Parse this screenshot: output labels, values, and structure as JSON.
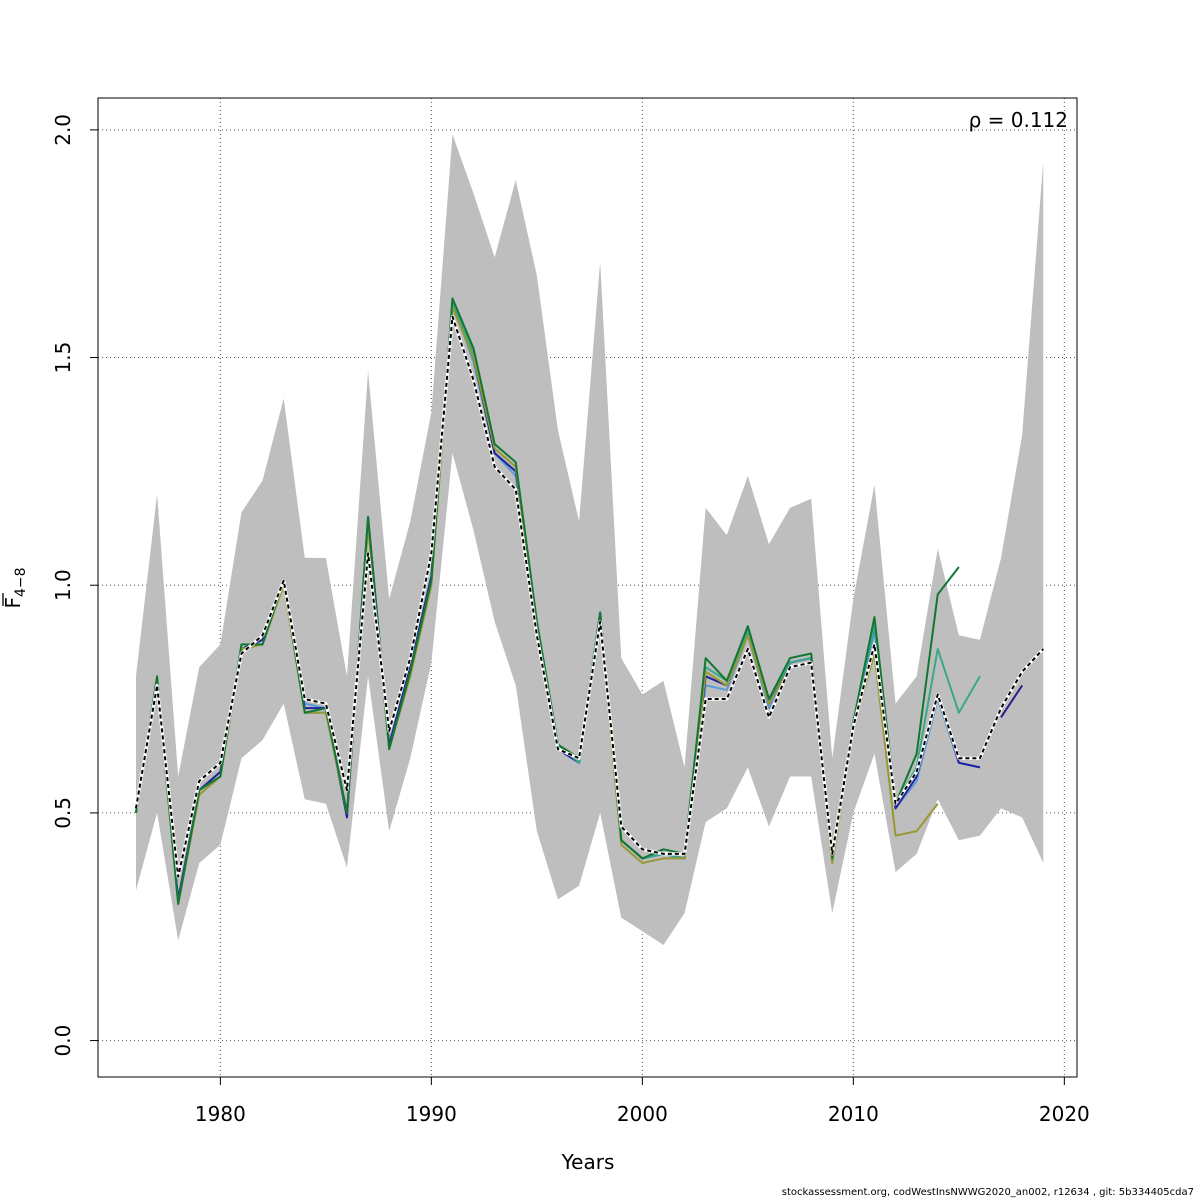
{
  "chart_data": {
    "type": "line",
    "xlabel": "Years",
    "ylabel_main": "F",
    "ylabel_sub": "4−8",
    "annotation": "ρ = 0.112",
    "xlim": [
      1974.2,
      2020.6
    ],
    "ylim": [
      -0.08,
      2.07
    ],
    "x_ticks": [
      1980,
      1990,
      2000,
      2010,
      2020
    ],
    "y_ticks": [
      0.0,
      0.5,
      1.0,
      1.5,
      2.0
    ],
    "y_tick_labels": [
      "0.0",
      "0.5",
      "1.0",
      "1.5",
      "2.0"
    ],
    "grid": true,
    "band_color": "#bebebe",
    "confidence_band": {
      "x": [
        1976,
        1977,
        1978,
        1979,
        1980,
        1981,
        1982,
        1983,
        1984,
        1985,
        1986,
        1987,
        1988,
        1989,
        1990,
        1991,
        1992,
        1993,
        1994,
        1995,
        1996,
        1997,
        1998,
        1999,
        2000,
        2001,
        2002,
        2003,
        2004,
        2005,
        2006,
        2007,
        2008,
        2009,
        2010,
        2011,
        2012,
        2013,
        2014,
        2015,
        2016,
        2017,
        2018,
        2019
      ],
      "upper": [
        0.8,
        1.2,
        0.58,
        0.82,
        0.87,
        1.16,
        1.23,
        1.41,
        1.06,
        1.06,
        0.8,
        1.47,
        0.97,
        1.14,
        1.38,
        1.99,
        1.86,
        1.72,
        1.89,
        1.68,
        1.34,
        1.14,
        1.71,
        0.84,
        0.76,
        0.79,
        0.6,
        1.17,
        1.11,
        1.24,
        1.09,
        1.17,
        1.19,
        0.62,
        0.97,
        1.22,
        0.74,
        0.8,
        1.08,
        0.89,
        0.88,
        1.06,
        1.33,
        1.93
      ],
      "lower": [
        0.33,
        0.5,
        0.22,
        0.39,
        0.43,
        0.62,
        0.66,
        0.74,
        0.53,
        0.52,
        0.38,
        0.8,
        0.46,
        0.62,
        0.83,
        1.29,
        1.12,
        0.92,
        0.78,
        0.46,
        0.31,
        0.34,
        0.5,
        0.27,
        0.24,
        0.21,
        0.28,
        0.48,
        0.51,
        0.6,
        0.47,
        0.58,
        0.58,
        0.28,
        0.5,
        0.63,
        0.37,
        0.41,
        0.53,
        0.44,
        0.45,
        0.51,
        0.49,
        0.39
      ]
    },
    "series": [
      {
        "color": "#5b9bd5",
        "dashed": false,
        "x": [
          1976,
          1977,
          1978,
          1979,
          1980,
          1981,
          1982,
          1983,
          1984,
          1985,
          1986,
          1987,
          1988,
          1989,
          1990,
          1991,
          1992,
          1993,
          1994,
          1995,
          1996,
          1997,
          1998,
          1999,
          2000,
          2001,
          2002,
          2003,
          2004,
          2005,
          2006,
          2007,
          2008,
          2009,
          2010,
          2011,
          2012,
          2013,
          2014,
          2015,
          2016
        ],
        "y": [
          0.5,
          0.79,
          0.31,
          0.55,
          0.59,
          0.86,
          0.88,
          1.01,
          0.74,
          0.73,
          0.5,
          1.14,
          0.65,
          0.81,
          1.02,
          1.62,
          1.49,
          1.29,
          1.24,
          0.92,
          0.64,
          0.61,
          0.93,
          0.44,
          0.4,
          0.41,
          0.4,
          0.78,
          0.77,
          0.89,
          0.73,
          0.83,
          0.84,
          0.4,
          0.69,
          0.9,
          0.51,
          0.57,
          0.75,
          0.61,
          0.6
        ]
      },
      {
        "color": "#1f1fa0",
        "dashed": false,
        "x": [
          1976,
          1977,
          1978,
          1979,
          1980,
          1981,
          1982,
          1983,
          1984,
          1985,
          1986,
          1987,
          1988,
          1989,
          1990,
          1991,
          1992,
          1993,
          1994,
          1995,
          1996,
          1997,
          1998,
          1999,
          2000,
          2001,
          2002,
          2003,
          2004,
          2005,
          2006,
          2007,
          2008,
          2009,
          2010,
          2011,
          2012,
          2013,
          2014,
          2015,
          2016
        ],
        "y": [
          0.5,
          0.79,
          0.31,
          0.55,
          0.59,
          0.86,
          0.88,
          1.01,
          0.73,
          0.73,
          0.49,
          1.15,
          0.65,
          0.82,
          1.02,
          1.62,
          1.5,
          1.29,
          1.25,
          0.91,
          0.64,
          0.61,
          0.94,
          0.44,
          0.4,
          0.41,
          0.4,
          0.8,
          0.78,
          0.9,
          0.74,
          0.83,
          0.84,
          0.4,
          0.7,
          0.91,
          0.51,
          0.58,
          0.76,
          0.61,
          0.6
        ]
      },
      {
        "color": "#2e1a8a",
        "dashed": false,
        "x": [
          2017,
          2018
        ],
        "y": [
          0.71,
          0.78
        ]
      },
      {
        "color": "#3aa88a",
        "dashed": false,
        "x": [
          1976,
          1977,
          1978,
          1979,
          1980,
          1981,
          1982,
          1983,
          1984,
          1985,
          1986,
          1987,
          1988,
          1989,
          1990,
          1991,
          1992,
          1993,
          1994,
          1995,
          1996,
          1997,
          1998,
          1999,
          2000,
          2001,
          2002,
          2003,
          2004,
          2005,
          2006,
          2007,
          2008,
          2009,
          2010,
          2011,
          2012,
          2013,
          2014,
          2015,
          2016
        ],
        "y": [
          0.5,
          0.79,
          0.3,
          0.55,
          0.58,
          0.86,
          0.87,
          1.01,
          0.72,
          0.72,
          0.5,
          1.14,
          0.64,
          0.81,
          1.01,
          1.62,
          1.51,
          1.3,
          1.26,
          0.92,
          0.65,
          0.61,
          0.93,
          0.44,
          0.4,
          0.41,
          0.4,
          0.82,
          0.79,
          0.9,
          0.75,
          0.83,
          0.84,
          0.4,
          0.7,
          0.91,
          0.52,
          0.6,
          0.86,
          0.72,
          0.8
        ]
      },
      {
        "color": "#999933",
        "dashed": false,
        "x": [
          1976,
          1977,
          1978,
          1979,
          1980,
          1981,
          1982,
          1983,
          1984,
          1985,
          1986,
          1987,
          1988,
          1989,
          1990,
          1991,
          1992,
          1993,
          1994,
          1995,
          1996,
          1997,
          1998,
          1999,
          2000,
          2001,
          2002,
          2003,
          2004,
          2005,
          2006,
          2007,
          2008,
          2009,
          2010,
          2011,
          2012,
          2013,
          2014
        ],
        "y": [
          0.5,
          0.79,
          0.3,
          0.54,
          0.58,
          0.86,
          0.87,
          1.0,
          0.72,
          0.72,
          0.5,
          1.13,
          0.64,
          0.8,
          1.0,
          1.61,
          1.5,
          1.3,
          1.26,
          0.91,
          0.65,
          0.62,
          0.92,
          0.43,
          0.39,
          0.4,
          0.4,
          0.81,
          0.78,
          0.89,
          0.74,
          0.82,
          0.83,
          0.39,
          0.69,
          0.85,
          0.45,
          0.46,
          0.52
        ]
      },
      {
        "color": "#117733",
        "dashed": false,
        "x": [
          1976,
          1977,
          1978,
          1979,
          1980,
          1981,
          1982,
          1983,
          1984,
          1985,
          1986,
          1987,
          1988,
          1989,
          1990,
          1991,
          1992,
          1993,
          1994,
          1995,
          1996,
          1997,
          1998,
          1999,
          2000,
          2001,
          2002,
          2003,
          2004,
          2005,
          2006,
          2007,
          2008,
          2009,
          2010,
          2011,
          2012,
          2013,
          2014,
          2015
        ],
        "y": [
          0.5,
          0.8,
          0.3,
          0.55,
          0.58,
          0.87,
          0.87,
          1.01,
          0.72,
          0.73,
          0.5,
          1.15,
          0.64,
          0.81,
          1.01,
          1.63,
          1.52,
          1.31,
          1.27,
          0.92,
          0.65,
          0.62,
          0.94,
          0.44,
          0.4,
          0.42,
          0.41,
          0.84,
          0.79,
          0.91,
          0.75,
          0.84,
          0.85,
          0.4,
          0.7,
          0.93,
          0.52,
          0.63,
          0.98,
          1.04
        ]
      },
      {
        "color": "#000000",
        "dashed": true,
        "x": [
          1976,
          1977,
          1978,
          1979,
          1980,
          1981,
          1982,
          1983,
          1984,
          1985,
          1986,
          1987,
          1988,
          1989,
          1990,
          1991,
          1992,
          1993,
          1994,
          1995,
          1996,
          1997,
          1998,
          1999,
          2000,
          2001,
          2002,
          2003,
          2004,
          2005,
          2006,
          2007,
          2008,
          2009,
          2010,
          2011,
          2012,
          2013,
          2014,
          2015,
          2016,
          2017,
          2018,
          2019
        ],
        "y": [
          0.51,
          0.78,
          0.36,
          0.57,
          0.61,
          0.85,
          0.89,
          1.01,
          0.75,
          0.74,
          0.55,
          1.07,
          0.68,
          0.84,
          1.07,
          1.59,
          1.45,
          1.26,
          1.21,
          0.89,
          0.64,
          0.62,
          0.92,
          0.47,
          0.42,
          0.41,
          0.41,
          0.75,
          0.75,
          0.86,
          0.71,
          0.82,
          0.83,
          0.41,
          0.69,
          0.87,
          0.52,
          0.59,
          0.76,
          0.62,
          0.62,
          0.73,
          0.81,
          0.86
        ]
      }
    ]
  },
  "footer": "stockassessment.org, codWestInsNWWG2020_an002, r12634 , git: 5b334405cda7"
}
